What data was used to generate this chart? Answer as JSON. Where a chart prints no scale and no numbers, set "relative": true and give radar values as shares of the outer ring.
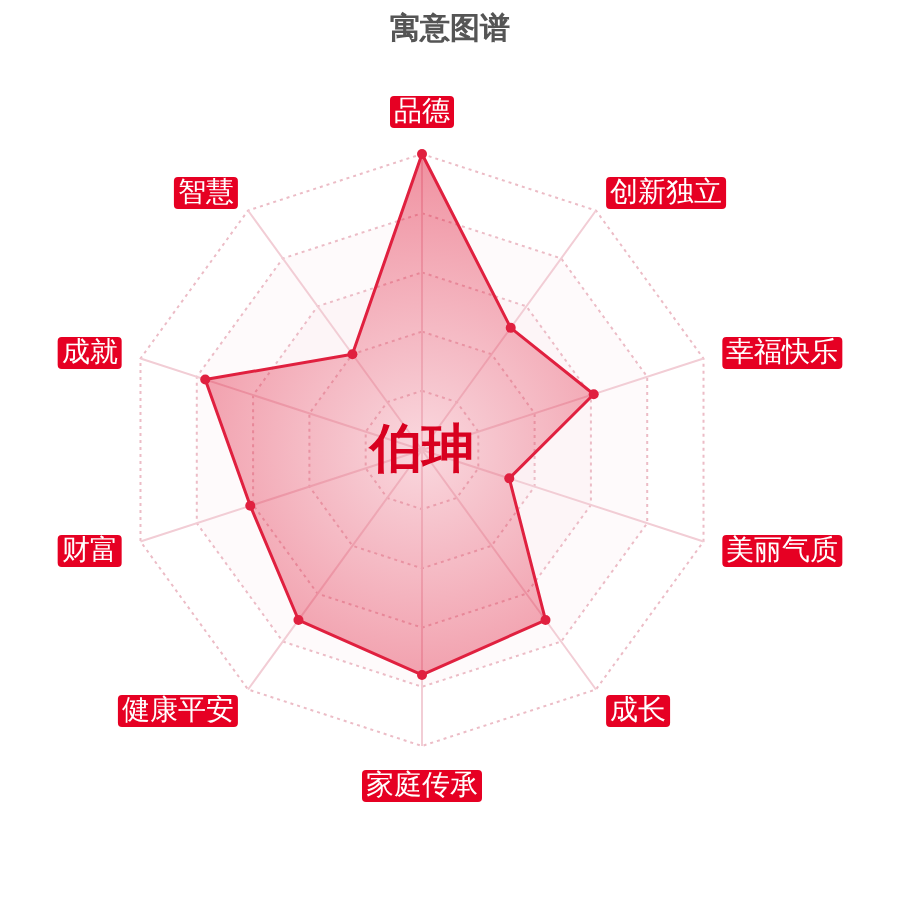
{
  "chart_data": {
    "type": "radar",
    "title": "寓意图谱",
    "categories": [
      "品德",
      "创新独立",
      "幸福快乐",
      "美丽气质",
      "成长",
      "家庭传承",
      "健康平安",
      "财富",
      "成就",
      "智慧"
    ],
    "relative": true,
    "grid": true,
    "marker": "circle",
    "line_style": "solid",
    "series": [
      {
        "color": "#e0203f",
        "values": [
          1.0,
          0.51,
          0.61,
          0.31,
          0.71,
          0.76,
          0.71,
          0.61,
          0.77,
          0.4
        ]
      }
    ],
    "annotations": [
      "伯珅"
    ]
  }
}
